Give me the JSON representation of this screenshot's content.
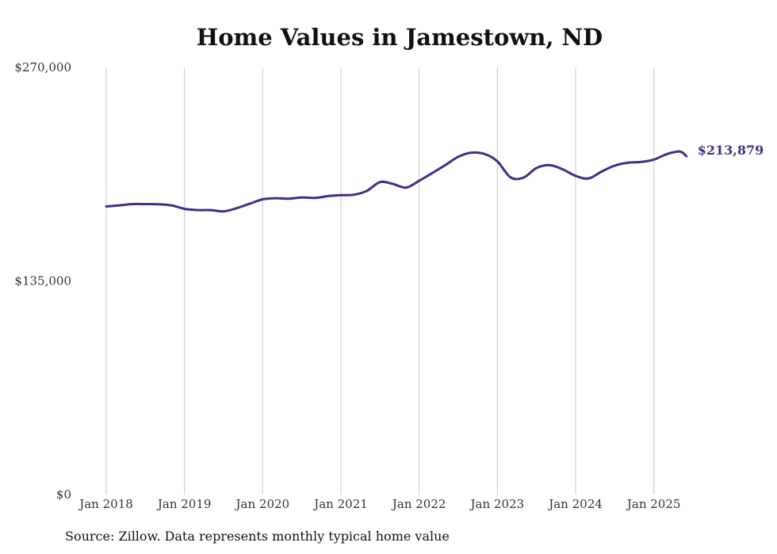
{
  "chart_data": {
    "type": "line",
    "title": "Home Values in Jamestown, ND",
    "xlabel": "",
    "ylabel": "",
    "y_ticks": [
      "$0",
      "$135,000",
      "$270,000"
    ],
    "ylim": [
      0,
      270000
    ],
    "x_ticks": [
      "Jan 2018",
      "Jan 2019",
      "Jan 2020",
      "Jan 2021",
      "Jan 2022",
      "Jan 2023",
      "Jan 2024",
      "Jan 2025"
    ],
    "xlim": [
      "2018-01",
      "2025-07"
    ],
    "grid": "vertical",
    "legend": "none",
    "line_color": "#3b3189",
    "end_label": "$213,879",
    "series": [
      {
        "x": [
          "2018-01",
          "2018-03",
          "2018-05",
          "2018-07",
          "2018-09",
          "2018-11",
          "2019-01",
          "2019-03",
          "2019-05",
          "2019-07",
          "2019-09",
          "2019-11",
          "2020-01",
          "2020-03",
          "2020-05",
          "2020-07",
          "2020-09",
          "2020-11",
          "2021-01",
          "2021-03",
          "2021-05",
          "2021-07",
          "2021-09",
          "2021-11",
          "2022-01",
          "2022-03",
          "2022-05",
          "2022-07",
          "2022-09",
          "2022-11",
          "2023-01",
          "2023-03",
          "2023-05",
          "2023-07",
          "2023-09",
          "2023-11",
          "2024-01",
          "2024-03",
          "2024-05",
          "2024-07",
          "2024-09",
          "2024-11",
          "2025-01",
          "2025-03",
          "2025-05",
          "2025-06"
        ],
        "values": [
          182100,
          182800,
          183600,
          183600,
          183500,
          182800,
          180600,
          179800,
          179800,
          179000,
          181000,
          183800,
          186600,
          187300,
          187000,
          187800,
          187500,
          188600,
          189200,
          189500,
          192000,
          197500,
          196300,
          194000,
          198300,
          203200,
          208200,
          213500,
          216100,
          215300,
          210600,
          200500,
          200300,
          206400,
          208200,
          205600,
          201400,
          199800,
          204200,
          207900,
          209700,
          210200,
          211700,
          215200,
          216800,
          213879
        ]
      }
    ]
  },
  "source_note": "Source: Zillow. Data represents monthly typical home value"
}
